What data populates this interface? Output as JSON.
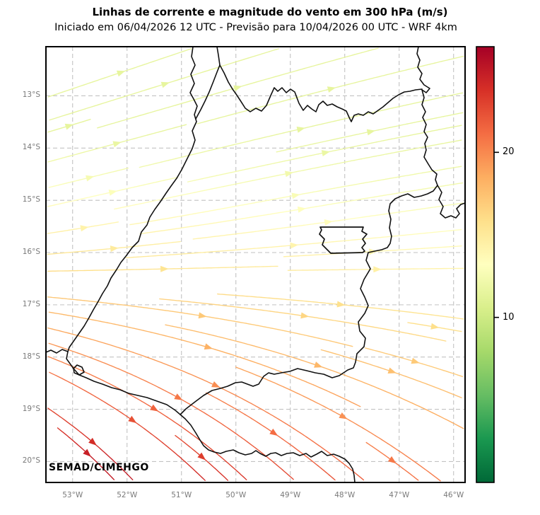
{
  "header": {
    "title": "Linhas de corrente e magnitude do vento em 300 hPa (m/s)",
    "subtitle": "Iniciado em 06/04/2026 12 UTC - Previsão para 10/04/2026 00 UTC - WRF 4km"
  },
  "watermark": "SEMAD/CIMEHGO",
  "axes": {
    "x_labels": [
      "53°W",
      "52°W",
      "51°W",
      "50°W",
      "49°W",
      "48°W",
      "47°W",
      "46°W"
    ],
    "y_labels": [
      "13°S",
      "14°S",
      "15°S",
      "16°S",
      "17°S",
      "18°S",
      "19°S",
      "20°S"
    ]
  },
  "chart_data": {
    "type": "streamline_map",
    "variable": "wind streamlines and magnitude at 300 hPa",
    "unit": "m/s",
    "title": "Linhas de corrente e magnitude do vento em 300 hPa (m/s)",
    "subtitle": "Iniciado em 06/04/2026 12 UTC - Previsão para 10/04/2026 00 UTC - WRF 4km",
    "model": "WRF 4km",
    "init_time": "06/04/2026 12 UTC",
    "valid_time": "10/04/2026 00 UTC",
    "source": "SEMAD/CIMEHGO",
    "region": "Goiás / Distrito Federal, Brazil",
    "extent": {
      "lon_west_deg_w": 53.5,
      "lon_east_deg_w": 45.8,
      "lat_north_deg_s": 12.1,
      "lat_south_deg_s": 20.4
    },
    "lon_ticks_deg_w": [
      53,
      52,
      51,
      50,
      49,
      48,
      47,
      46
    ],
    "lat_ticks_deg_s": [
      13,
      14,
      15,
      16,
      17,
      18,
      19,
      20
    ],
    "grid": {
      "style": "dashed",
      "visible": true
    },
    "colorbar": {
      "colormap": "RdYlGn_r",
      "vmin": 0,
      "vmax": 26.4,
      "ticks": [
        10,
        20
      ],
      "position": "right",
      "unit": "m/s"
    },
    "speed_grid": {
      "lats_deg_s": [
        13,
        14,
        15,
        16,
        17,
        18,
        19,
        20
      ],
      "lons_deg_w": [
        53,
        52,
        51,
        50,
        49,
        48,
        47,
        46
      ],
      "values_ms": [
        [
          11.6,
          11.6,
          11.5,
          11.5,
          11.5,
          11.4,
          11.4,
          11.4
        ],
        [
          11.9,
          11.9,
          11.8,
          11.8,
          11.8,
          11.7,
          11.7,
          11.7
        ],
        [
          13.4,
          13.3,
          13.2,
          13.1,
          13.0,
          12.9,
          12.8,
          12.7
        ],
        [
          15.4,
          15.2,
          15.0,
          14.8,
          14.5,
          14.3,
          14.1,
          13.9
        ],
        [
          17.7,
          17.4,
          17.0,
          16.7,
          16.4,
          16.0,
          15.7,
          15.4
        ],
        [
          20.2,
          19.8,
          19.3,
          18.8,
          18.4,
          17.9,
          17.4,
          17.0
        ],
        [
          23.0,
          22.4,
          21.7,
          21.1,
          20.5,
          19.9,
          19.3,
          18.7
        ],
        [
          24.6,
          24.3,
          23.5,
          22.7,
          22.0,
          21.2,
          20.4,
          19.7
        ]
      ]
    },
    "flow_bearing_deg_by_lat": {
      "13": 70,
      "14": 76,
      "15": 83,
      "16": 92,
      "17": 100,
      "18": 112,
      "19": 124,
      "20": 133
    },
    "flow_summary": "Westerly flow turning ENE over the north of the domain, zonal near 16°S, and strong northwesterly flow toward the SE over the south, with a jet maximum (~24 m/s, red streamlines) in the southwest corner."
  }
}
